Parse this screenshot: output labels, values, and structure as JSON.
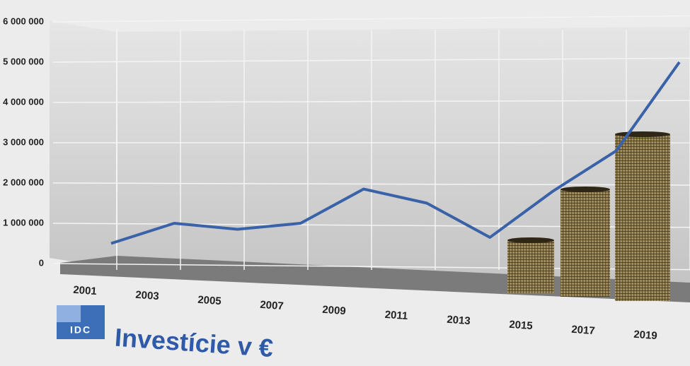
{
  "chart_data": {
    "type": "line",
    "title": "Investície v €",
    "logo": "IDC",
    "categories": [
      "2001",
      "2003",
      "2005",
      "2007",
      "2009",
      "2011",
      "2013",
      "2015",
      "2017",
      "2019"
    ],
    "series": [
      {
        "color": "#3a62a8",
        "values": [
          500000,
          1000000,
          850000,
          1000000,
          1850000,
          1500000,
          650000,
          1800000,
          2800000,
          5000000
        ]
      }
    ],
    "ylim": [
      0,
      6000000
    ],
    "yticks": [
      0,
      {
        "value": 1000000,
        "label": "1 000 000"
      },
      {
        "value": 2000000,
        "label": "2 000 000"
      },
      {
        "value": 3000000,
        "label": "3 000 000"
      },
      {
        "value": 4000000,
        "label": "4 000 000"
      },
      {
        "value": 5000000,
        "label": "5 000 000"
      },
      {
        "value": 6000000,
        "label": "6 000 000"
      }
    ],
    "grid": true
  }
}
